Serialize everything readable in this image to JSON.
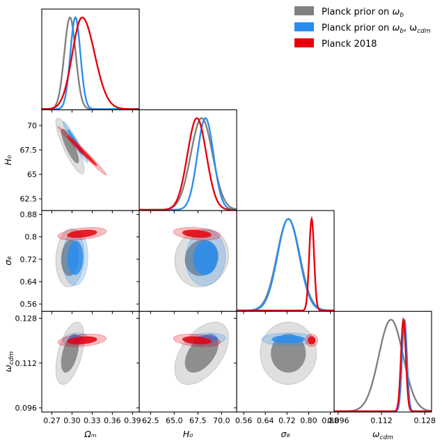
{
  "chart_data": {
    "type": "triangle-corner",
    "parameters": [
      {
        "key": "Om",
        "label": "Ωₘ",
        "range": [
          0.255,
          0.4
        ],
        "ticks": [
          0.27,
          0.3,
          0.33,
          0.36,
          0.39
        ],
        "tick_labels": [
          "0.27",
          "0.30",
          "0.33",
          "0.36",
          "0.39"
        ]
      },
      {
        "key": "H0",
        "label": "H₀",
        "range": [
          61.3,
          71.6
        ],
        "ticks": [
          62.5,
          65.0,
          67.5,
          70.0
        ],
        "tick_labels": [
          "62.5",
          "65.0",
          "67.5",
          "70.0"
        ]
      },
      {
        "key": "s8",
        "label": "σ₈",
        "range": [
          0.534,
          0.894
        ],
        "ticks": [
          0.56,
          0.64,
          0.72,
          0.8,
          0.88
        ],
        "tick_labels": [
          "0.56",
          "0.64",
          "0.72",
          "0.80",
          "0.88"
        ]
      },
      {
        "key": "wcdm",
        "label": "ω_cdm",
        "range": [
          0.0945,
          0.1305
        ],
        "ticks": [
          0.096,
          0.112,
          0.128
        ],
        "tick_labels": [
          "0.096",
          "0.112",
          "0.128"
        ]
      }
    ],
    "y_tick_labels": {
      "H0": [
        "62.5",
        "65",
        "67.5",
        "70"
      ],
      "s8": [
        "0.56",
        "0.64",
        "0.72",
        "0.8",
        "0.88"
      ],
      "wcdm": [
        "0.096",
        "0.112",
        "0.128"
      ]
    },
    "series": [
      {
        "name": "Planck prior on ω_b",
        "legend_main": "Planck prior on ",
        "legend_sym": "ω",
        "legend_sub": "b",
        "legend_extra": "",
        "color": "#808080",
        "means": {
          "Om": 0.297,
          "H0": 67.9,
          "s8": 0.725,
          "wcdm": 0.1155
        },
        "sigmas": {
          "Om": 0.0085,
          "H0": 1.15,
          "s8": 0.042,
          "wcdm": 0.0045
        },
        "correlations": {
          "Om_H0": -0.85,
          "Om_s8": 0.1,
          "H0_s8": 0.1,
          "Om_wcdm": 0.5,
          "H0_wcdm": 0.5,
          "s8_wcdm": 0.0
        }
      },
      {
        "name": "Planck prior on ω_b, ω_cdm",
        "legend_main": "Planck prior on ",
        "legend_sym": "ω",
        "legend_sub": "b",
        "legend_extra": ", ω",
        "legend_sub2": "cdm",
        "color": "#2a8ef0",
        "means": {
          "Om": 0.305,
          "H0": 68.3,
          "s8": 0.725,
          "wcdm": 0.1205
        },
        "sigmas": {
          "Om": 0.0075,
          "H0": 0.85,
          "s8": 0.04,
          "wcdm": 0.0009
        },
        "correlations": {
          "Om_H0": -0.97,
          "Om_s8": 0.05,
          "H0_s8": 0.05,
          "Om_wcdm": 0.2,
          "H0_wcdm": 0.2,
          "s8_wcdm": 0.0
        }
      },
      {
        "name": "Planck 2018",
        "legend_main": "Planck 2018",
        "legend_sym": "",
        "legend_sub": "",
        "legend_extra": "",
        "color": "#e8000b",
        "means": {
          "Om": 0.315,
          "H0": 67.4,
          "s8": 0.811,
          "wcdm": 0.1201
        },
        "sigmas": {
          "Om": 0.0145,
          "H0": 1.0,
          "s8": 0.009,
          "wcdm": 0.0009
        },
        "correlations": {
          "Om_H0": -0.99,
          "Om_s8": 0.4,
          "H0_s8": -0.3,
          "Om_wcdm": 0.3,
          "H0_wcdm": -0.3,
          "s8_wcdm": 0.0
        }
      }
    ]
  }
}
